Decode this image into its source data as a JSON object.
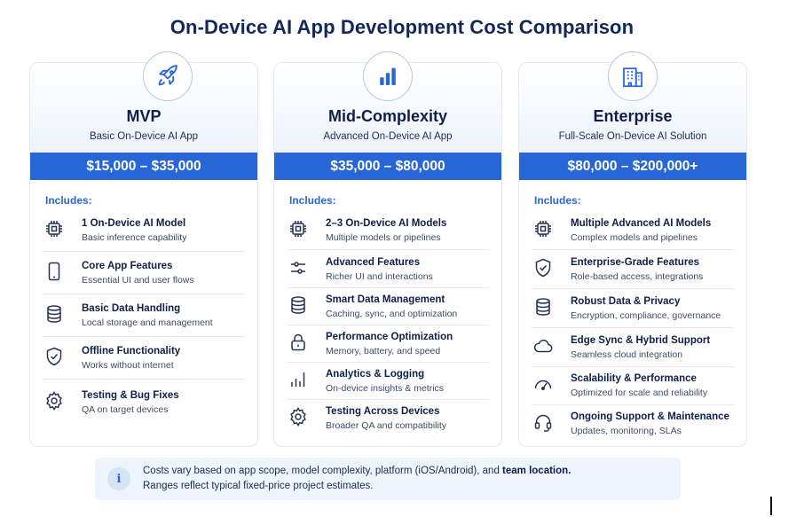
{
  "title": "On-Device AI App Development Cost Comparison",
  "accent_color": "#2866d6",
  "cards": [
    {
      "icon": "rocket-icon",
      "name": "MVP",
      "subtitle": "Basic On-Device AI App",
      "price": "$15,000 – $35,000",
      "includes_label": "Includes:",
      "features": [
        {
          "icon": "chip-icon",
          "title": "1 On-Device AI Model",
          "desc": "Basic inference capability"
        },
        {
          "icon": "phone-icon",
          "title": "Core App Features",
          "desc": "Essential UI and user flows"
        },
        {
          "icon": "database-icon",
          "title": "Basic Data Handling",
          "desc": "Local storage and management"
        },
        {
          "icon": "shield-check-icon",
          "title": "Offline Functionality",
          "desc": "Works without internet"
        },
        {
          "icon": "gear-icon",
          "title": "Testing & Bug Fixes",
          "desc": "QA on target devices"
        }
      ]
    },
    {
      "icon": "bar-chart-icon",
      "name": "Mid-Complexity",
      "subtitle": "Advanced On-Device AI App",
      "price": "$35,000 – $80,000",
      "includes_label": "Includes:",
      "features": [
        {
          "icon": "chip-icon",
          "title": "2–3 On-Device AI Models",
          "desc": "Multiple models or pipelines"
        },
        {
          "icon": "sliders-icon",
          "title": "Advanced Features",
          "desc": "Richer UI and interactions"
        },
        {
          "icon": "database-icon",
          "title": "Smart Data Management",
          "desc": "Caching, sync, and optimization"
        },
        {
          "icon": "lock-icon",
          "title": "Performance Optimization",
          "desc": "Memory, battery, and speed"
        },
        {
          "icon": "analytics-icon",
          "title": "Analytics & Logging",
          "desc": "On-device insights & metrics"
        },
        {
          "icon": "gear-icon",
          "title": "Testing Across Devices",
          "desc": "Broader QA and compatibility"
        }
      ]
    },
    {
      "icon": "building-icon",
      "name": "Enterprise",
      "subtitle": "Full-Scale On-Device AI Solution",
      "price": "$80,000 – $200,000+",
      "includes_label": "Includes:",
      "features": [
        {
          "icon": "chip-icon",
          "title": "Multiple Advanced AI Models",
          "desc": "Complex models and pipelines"
        },
        {
          "icon": "shield-check-icon",
          "title": "Enterprise-Grade Features",
          "desc": "Role-based access, integrations"
        },
        {
          "icon": "database-icon",
          "title": "Robust Data & Privacy",
          "desc": "Encryption, compliance, governance"
        },
        {
          "icon": "cloud-icon",
          "title": "Edge Sync & Hybrid Support",
          "desc": "Seamless cloud integration"
        },
        {
          "icon": "gauge-icon",
          "title": "Scalability & Performance",
          "desc": "Optimized for scale and reliability"
        },
        {
          "icon": "headset-icon",
          "title": "Ongoing Support & Maintenance",
          "desc": "Updates, monitoring, SLAs"
        }
      ]
    }
  ],
  "note": {
    "icon": "info-icon",
    "icon_glyph": "i",
    "line1_prefix": "Costs vary based on app scope, model complexity, platform (iOS/Android), and ",
    "line1_bold": "team location.",
    "line2": "Ranges reflect typical fixed-price project estimates."
  }
}
